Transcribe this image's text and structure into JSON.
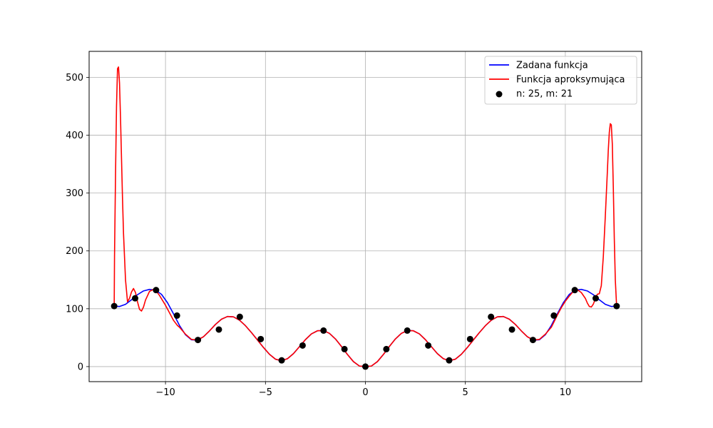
{
  "chart_data": {
    "type": "line",
    "title": "",
    "xlabel": "",
    "ylabel": "",
    "xlim": [
      -13.82,
      13.82
    ],
    "ylim": [
      -26,
      545
    ],
    "xticks": [
      -10,
      -5,
      0,
      5,
      10
    ],
    "xtick_labels": [
      "−10",
      "−5",
      "0",
      "5",
      "10"
    ],
    "yticks": [
      0,
      100,
      200,
      300,
      400,
      500
    ],
    "ytick_labels": [
      "0",
      "100",
      "200",
      "300",
      "400",
      "500"
    ],
    "grid": true,
    "legend_position": "upper right",
    "series": [
      {
        "name": "Zadana funkcja",
        "kind": "line",
        "color": "#0000ff",
        "x": [
          -12.566,
          -12.3,
          -12.0,
          -11.7,
          -11.4,
          -11.1,
          -10.8,
          -10.5,
          -10.2,
          -9.9,
          -9.6,
          -9.3,
          -9.0,
          -8.7,
          -8.4,
          -8.1,
          -7.8,
          -7.5,
          -7.2,
          -6.9,
          -6.6,
          -6.3,
          -6.0,
          -5.7,
          -5.4,
          -5.1,
          -4.8,
          -4.5,
          -4.2,
          -3.9,
          -3.6,
          -3.3,
          -3.0,
          -2.7,
          -2.4,
          -2.1,
          -1.8,
          -1.5,
          -1.2,
          -0.9,
          -0.6,
          -0.3,
          0.0,
          0.3,
          0.6,
          0.9,
          1.2,
          1.5,
          1.8,
          2.1,
          2.4,
          2.7,
          3.0,
          3.3,
          3.6,
          3.9,
          4.2,
          4.5,
          4.8,
          5.1,
          5.4,
          5.7,
          6.0,
          6.3,
          6.6,
          6.9,
          7.2,
          7.5,
          7.8,
          8.1,
          8.4,
          8.7,
          9.0,
          9.3,
          9.6,
          9.9,
          10.2,
          10.5,
          10.8,
          11.1,
          11.4,
          11.7,
          12.0,
          12.3,
          12.566
        ],
        "y": [
          104.6,
          103.9,
          107.7,
          115.5,
          124.3,
          130.8,
          133.5,
          132.3,
          124.9,
          110.4,
          91.3,
          71.1,
          55.0,
          46.3,
          45.7,
          51.6,
          61.7,
          72.9,
          81.9,
          86.6,
          86.0,
          80.3,
          70.7,
          58.8,
          46.0,
          33.1,
          21.3,
          12.8,
          10.2,
          13.6,
          22.4,
          34.4,
          46.6,
          56.5,
          61.9,
          62.3,
          57.5,
          47.8,
          34.9,
          21.0,
          8.6,
          1.0,
          0.0,
          1.0,
          8.6,
          21.0,
          34.9,
          47.8,
          57.5,
          62.3,
          61.9,
          56.5,
          46.6,
          34.4,
          22.4,
          13.6,
          10.2,
          12.8,
          21.3,
          33.1,
          46.0,
          58.8,
          70.7,
          80.3,
          86.0,
          86.6,
          81.9,
          72.9,
          61.7,
          51.6,
          45.7,
          46.3,
          55.0,
          71.1,
          91.3,
          110.4,
          124.9,
          132.3,
          133.5,
          130.8,
          124.3,
          115.5,
          107.7,
          103.9,
          104.6
        ]
      },
      {
        "name": "Funkcja aproksymująca",
        "kind": "line",
        "color": "#ff0000",
        "x": [
          -12.566,
          -12.55,
          -12.5,
          -12.45,
          -12.4,
          -12.35,
          -12.3,
          -12.25,
          -12.2,
          -12.15,
          -12.1,
          -12.0,
          -11.9,
          -11.8,
          -11.7,
          -11.6,
          -11.5,
          -11.4,
          -11.3,
          -11.2,
          -11.1,
          -11.0,
          -10.8,
          -10.6,
          -10.5,
          -10.3,
          -10.0,
          -9.8,
          -9.6,
          -9.4,
          -9.3,
          -9.0,
          -8.7,
          -8.4,
          -8.1,
          -7.8,
          -7.5,
          -7.2,
          -6.9,
          -6.6,
          -6.3,
          -6.0,
          -5.7,
          -5.4,
          -5.1,
          -4.8,
          -4.5,
          -4.2,
          -3.9,
          -3.6,
          -3.3,
          -3.0,
          -2.7,
          -2.4,
          -2.1,
          -1.8,
          -1.5,
          -1.2,
          -0.9,
          -0.6,
          -0.3,
          0.0,
          0.3,
          0.6,
          0.9,
          1.2,
          1.5,
          1.8,
          2.1,
          2.4,
          2.7,
          3.0,
          3.3,
          3.6,
          3.9,
          4.2,
          4.5,
          4.8,
          5.1,
          5.4,
          5.7,
          6.0,
          6.3,
          6.6,
          6.9,
          7.2,
          7.5,
          7.8,
          8.1,
          8.4,
          8.7,
          9.0,
          9.3,
          9.4,
          9.6,
          9.8,
          10.0,
          10.2,
          10.4,
          10.5,
          10.6,
          10.8,
          11.0,
          11.1,
          11.2,
          11.3,
          11.4,
          11.5,
          11.6,
          11.7,
          11.8,
          11.9,
          12.0,
          12.1,
          12.15,
          12.2,
          12.25,
          12.3,
          12.35,
          12.4,
          12.45,
          12.5,
          12.55,
          12.566
        ],
        "y": [
          104.6,
          190.0,
          330.0,
          450.0,
          515.0,
          518.0,
          490.0,
          430.0,
          360.0,
          290.0,
          230.0,
          150.0,
          112.0,
          118.0,
          129.0,
          135.0,
          128.0,
          112.0,
          99.0,
          96.0,
          103.0,
          115.0,
          130.0,
          133.5,
          132.3,
          123.0,
          106.0,
          93.0,
          80.0,
          71.0,
          68.0,
          56.0,
          47.0,
          46.0,
          51.6,
          61.7,
          72.9,
          81.9,
          86.6,
          86.0,
          80.3,
          70.7,
          58.8,
          46.0,
          33.1,
          21.3,
          12.8,
          10.2,
          13.6,
          22.4,
          34.4,
          46.6,
          56.5,
          61.9,
          62.3,
          57.5,
          47.8,
          34.9,
          21.0,
          8.6,
          1.0,
          0.0,
          1.0,
          8.6,
          21.0,
          34.9,
          47.8,
          57.5,
          62.3,
          61.9,
          56.5,
          46.6,
          34.4,
          22.4,
          13.6,
          10.2,
          12.8,
          21.3,
          33.1,
          46.0,
          58.8,
          70.7,
          80.3,
          86.0,
          86.6,
          81.9,
          72.9,
          61.7,
          51.6,
          46.0,
          47.0,
          56.0,
          68.0,
          75.0,
          89.0,
          102.0,
          113.0,
          122.0,
          130.0,
          132.3,
          133.0,
          128.0,
          118.0,
          110.0,
          104.0,
          103.0,
          108.0,
          117.0,
          125.0,
          126.0,
          140.0,
          190.0,
          260.0,
          335.0,
          375.0,
          405.0,
          420.0,
          418.0,
          385.0,
          310.0,
          220.0,
          150.0,
          115.0,
          104.6
        ]
      },
      {
        "name": "n: 25, m: 21",
        "kind": "scatter",
        "color": "#000000",
        "x": [
          -12.566,
          -11.519,
          -10.472,
          -9.425,
          -8.378,
          -7.33,
          -6.283,
          -5.236,
          -4.189,
          -3.142,
          -2.094,
          -1.047,
          0.0,
          1.047,
          2.094,
          3.142,
          4.189,
          5.236,
          6.283,
          7.33,
          8.378,
          9.425,
          10.472,
          11.519,
          12.566
        ],
        "y": [
          104.6,
          118.1,
          132.3,
          88.2,
          46.0,
          64.1,
          86.0,
          47.6,
          10.8,
          36.5,
          62.3,
          30.2,
          0.0,
          30.2,
          62.3,
          36.5,
          10.8,
          47.6,
          86.0,
          64.1,
          46.0,
          88.2,
          132.3,
          118.1,
          104.6
        ]
      }
    ]
  }
}
